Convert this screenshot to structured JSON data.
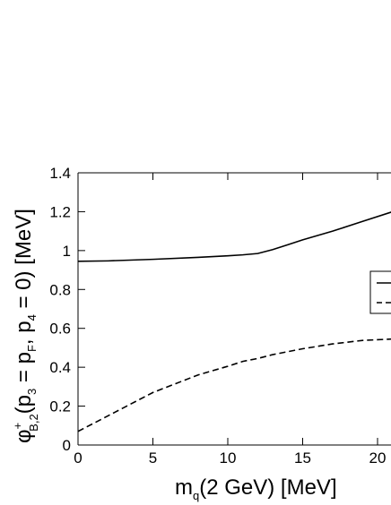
{
  "chart_data": {
    "type": "line",
    "x_label_parts": [
      "m",
      "q",
      "(2 GeV) [MeV]"
    ],
    "y_label_parts": [
      "φ",
      "+",
      "B,2",
      "(p",
      "3",
      " = p",
      "F",
      ", p",
      "4",
      " = 0) [MeV]"
    ],
    "x": [
      0,
      2,
      5,
      8,
      10,
      11,
      12,
      13,
      14,
      15,
      17,
      19,
      21
    ],
    "series": [
      {
        "color": "#000000",
        "dash": "solid",
        "values": [
          0.945,
          0.947,
          0.955,
          0.965,
          0.973,
          0.978,
          0.985,
          1.005,
          1.03,
          1.055,
          1.1,
          1.15,
          1.2
        ]
      },
      {
        "color": "#000000",
        "dash": "dashed",
        "values": [
          0.07,
          0.15,
          0.27,
          0.36,
          0.405,
          0.43,
          0.445,
          0.465,
          0.48,
          0.495,
          0.52,
          0.538,
          0.545
        ]
      }
    ],
    "xlim": [
      0,
      20.9
    ],
    "ylim": [
      0,
      1.4
    ],
    "xticks": [
      0,
      5,
      10,
      15,
      20
    ],
    "yticks": [
      0,
      0.2,
      0.4,
      0.6,
      0.8,
      1,
      1.2,
      1.4
    ]
  }
}
